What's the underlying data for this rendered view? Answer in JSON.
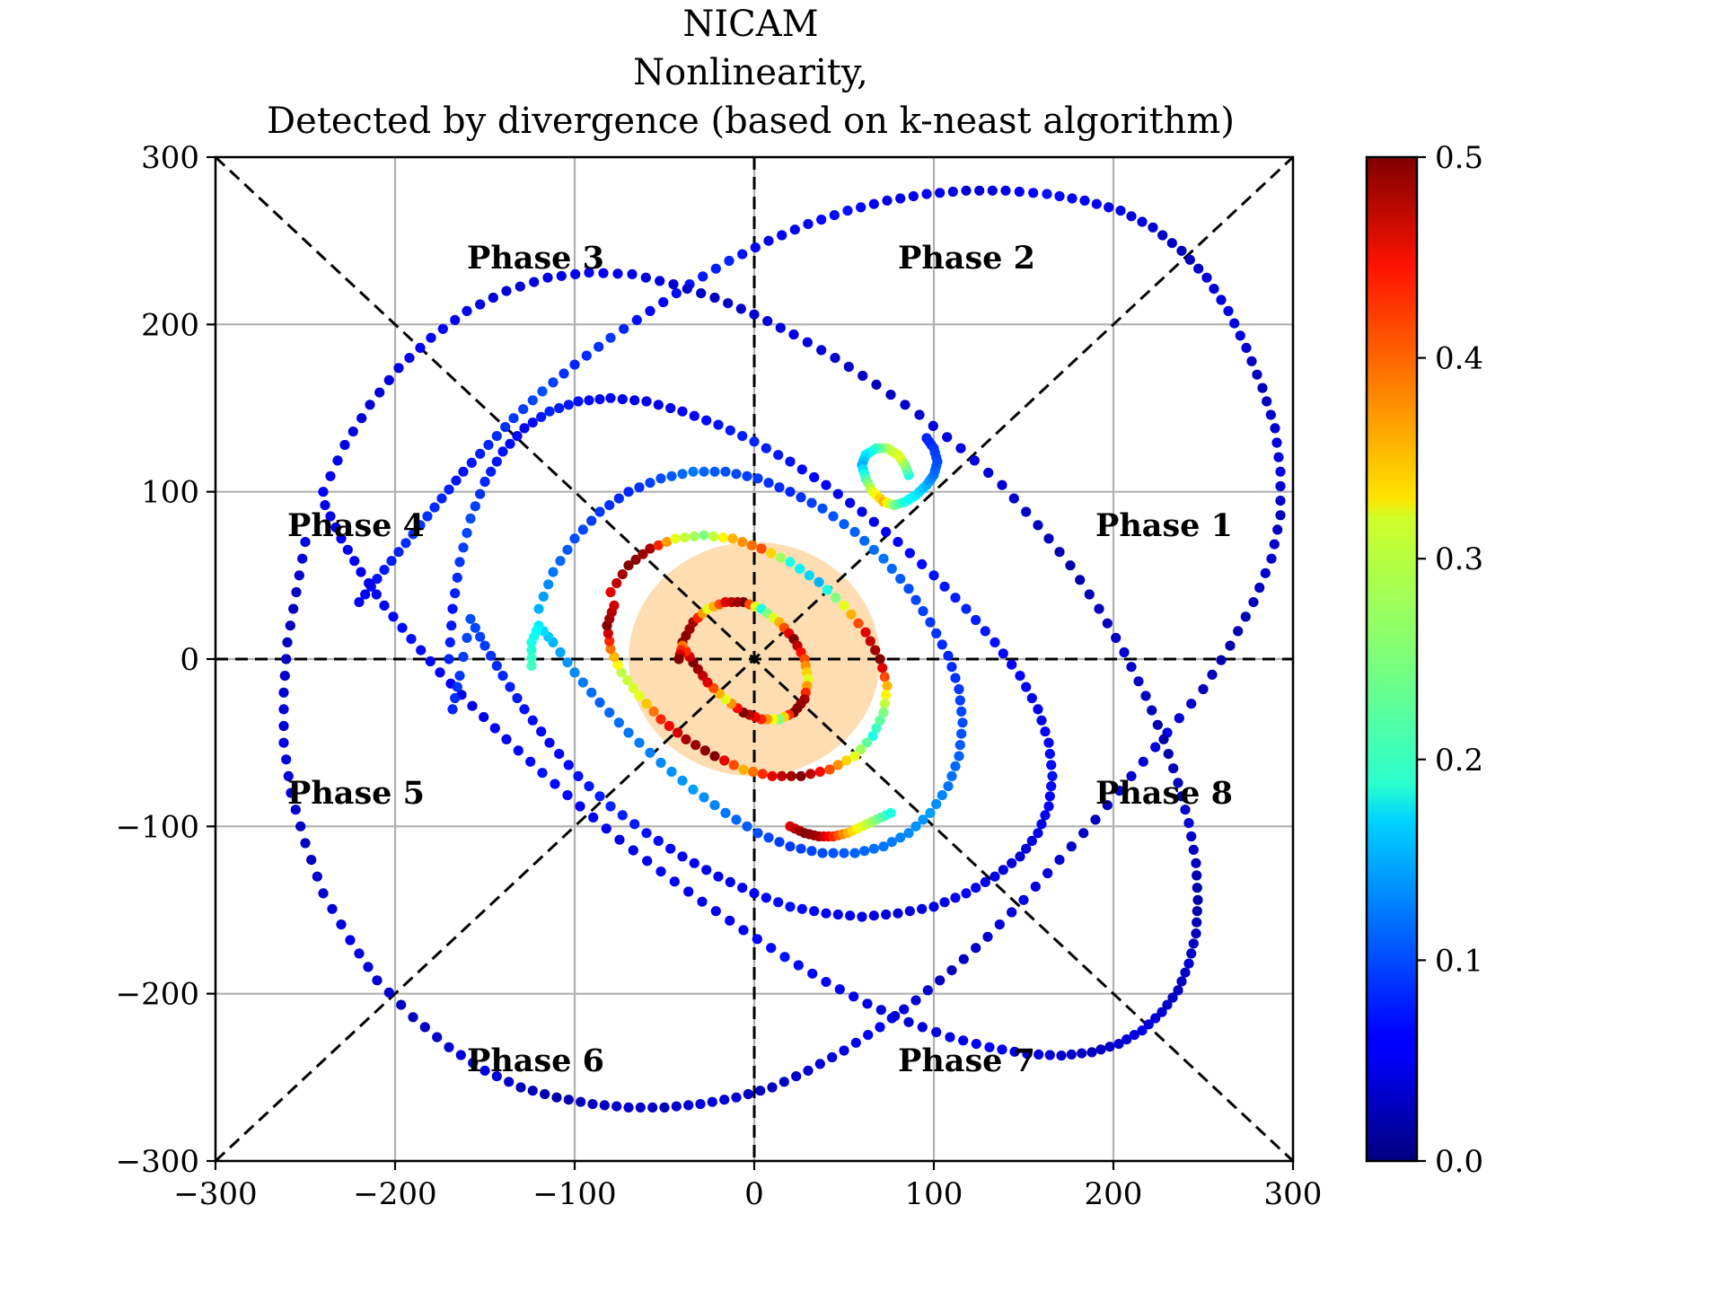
{
  "chart_data": {
    "type": "scatter",
    "title": [
      "NICAM",
      "Nonlinearity,",
      "Detected by divergence (based on k-neast algorithm)"
    ],
    "xlim": [
      -300,
      300
    ],
    "ylim": [
      -300,
      300
    ],
    "x_ticks": [
      -300,
      -200,
      -100,
      0,
      100,
      200,
      300
    ],
    "y_ticks": [
      -300,
      -200,
      -100,
      0,
      100,
      200,
      300
    ],
    "x_tick_labels": [
      "−300",
      "−200",
      "−100",
      "0",
      "100",
      "200",
      "300"
    ],
    "y_tick_labels": [
      "−300",
      "−200",
      "−100",
      "0",
      "100",
      "200",
      "300"
    ],
    "grid": true,
    "reference_lines": [
      "x=0",
      "y=0",
      "y=x",
      "y=-x"
    ],
    "phase_labels": [
      {
        "text": "Phase 1",
        "x": 190,
        "y": 80
      },
      {
        "text": "Phase 2",
        "x": 80,
        "y": 240
      },
      {
        "text": "Phase 3",
        "x": -160,
        "y": 240
      },
      {
        "text": "Phase 4",
        "x": -260,
        "y": 80
      },
      {
        "text": "Phase 5",
        "x": -260,
        "y": -80
      },
      {
        "text": "Phase 6",
        "x": -160,
        "y": -240
      },
      {
        "text": "Phase 7",
        "x": 80,
        "y": -240
      },
      {
        "text": "Phase 8",
        "x": 190,
        "y": -80
      }
    ],
    "shaded_region": {
      "center": [
        0,
        0
      ],
      "rx": 70,
      "ry": 70,
      "color": "#fdd9a8"
    },
    "colorbar": {
      "colormap": "jet",
      "range": [
        0.0,
        0.5
      ],
      "ticks": [
        0.0,
        0.1,
        0.2,
        0.3,
        0.4,
        0.5
      ],
      "tick_labels": [
        "0.0",
        "0.1",
        "0.2",
        "0.3",
        "0.4",
        "0.5"
      ]
    },
    "series": [
      {
        "x": [
          -250,
          -255,
          -260,
          -262,
          -262,
          -258,
          -250,
          -240,
          -225,
          -210,
          -190,
          -170,
          -150,
          -130,
          -110,
          -90,
          -70,
          -50,
          -30,
          -10,
          10,
          30,
          50,
          70,
          90,
          110,
          130,
          150,
          170,
          190,
          210,
          230,
          250,
          265,
          278,
          288,
          293,
          293,
          290,
          283,
          274,
          264,
          252,
          238,
          222,
          204,
          184,
          163,
          140,
          118,
          96,
          74,
          52,
          30,
          8,
          -14,
          -36,
          -58,
          -80,
          -100,
          -118,
          -134,
          -148,
          -162,
          -174,
          -186,
          -198,
          -210,
          -220
        ],
        "y": [
          70,
          40,
          10,
          -20,
          -50,
          -80,
          -110,
          -140,
          -168,
          -192,
          -214,
          -232,
          -246,
          -256,
          -262,
          -266,
          -268,
          -268,
          -266,
          -262,
          -256,
          -246,
          -234,
          -220,
          -204,
          -186,
          -166,
          -144,
          -120,
          -96,
          -70,
          -44,
          -18,
          8,
          34,
          60,
          86,
          112,
          138,
          162,
          186,
          208,
          228,
          244,
          258,
          268,
          274,
          278,
          280,
          280,
          278,
          274,
          268,
          260,
          250,
          238,
          224,
          208,
          192,
          176,
          160,
          144,
          128,
          112,
          96,
          80,
          64,
          48,
          34
        ],
        "c": [
          0.05,
          0.03,
          0.03,
          0.04,
          0.05,
          0.04,
          0.03,
          0.04,
          0.05,
          0.04,
          0.03,
          0.04,
          0.05,
          0.03,
          0.02,
          0.03,
          0.04,
          0.03,
          0.05,
          0.04,
          0.03,
          0.04,
          0.05,
          0.06,
          0.04,
          0.03,
          0.04,
          0.05,
          0.04,
          0.03,
          0.04,
          0.05,
          0.03,
          0.02,
          0.03,
          0.04,
          0.03,
          0.05,
          0.04,
          0.03,
          0.04,
          0.05,
          0.04,
          0.03,
          0.04,
          0.05,
          0.06,
          0.07,
          0.05,
          0.04,
          0.06,
          0.05,
          0.07,
          0.06,
          0.05,
          0.08,
          0.07,
          0.06,
          0.09,
          0.08,
          0.1,
          0.09,
          0.08,
          0.07,
          0.08,
          0.09,
          0.08,
          0.07,
          0.06
        ]
      },
      {
        "x": [
          -240,
          -228,
          -214,
          -198,
          -180,
          -160,
          -138,
          -115,
          -92,
          -68,
          -45,
          -22,
          0,
          22,
          45,
          68,
          92,
          115,
          138,
          158,
          176,
          192,
          206,
          218,
          228,
          236,
          242,
          246,
          247,
          246,
          242,
          236,
          227,
          216,
          203,
          188,
          171,
          152,
          131,
          109,
          86,
          63,
          40,
          17,
          -6,
          -29,
          -52,
          -75,
          -97,
          -118,
          -138,
          -157,
          -175,
          -191,
          -206,
          -219,
          -230,
          -239
        ],
        "y": [
          100,
          128,
          152,
          174,
          192,
          208,
          220,
          228,
          231,
          230,
          224,
          216,
          206,
          194,
          180,
          164,
          146,
          126,
          104,
          80,
          56,
          30,
          4,
          -22,
          -48,
          -74,
          -98,
          -122,
          -144,
          -164,
          -182,
          -198,
          -211,
          -222,
          -230,
          -235,
          -237,
          -236,
          -232,
          -226,
          -217,
          -206,
          -193,
          -178,
          -162,
          -145,
          -127,
          -108,
          -88,
          -68,
          -48,
          -28,
          -8,
          12,
          32,
          52,
          72,
          92
        ],
        "c": [
          0.06,
          0.05,
          0.04,
          0.05,
          0.06,
          0.05,
          0.04,
          0.05,
          0.06,
          0.05,
          0.04,
          0.03,
          0.04,
          0.05,
          0.04,
          0.03,
          0.04,
          0.05,
          0.04,
          0.03,
          0.02,
          0.03,
          0.04,
          0.03,
          0.02,
          0.03,
          0.04,
          0.03,
          0.02,
          0.03,
          0.04,
          0.03,
          0.04,
          0.05,
          0.04,
          0.03,
          0.04,
          0.05,
          0.06,
          0.05,
          0.04,
          0.05,
          0.06,
          0.07,
          0.06,
          0.05,
          0.06,
          0.05,
          0.06,
          0.07,
          0.06,
          0.05,
          0.06,
          0.07,
          0.06,
          0.05,
          0.06,
          0.05
        ]
      },
      {
        "x": [
          -170,
          -168,
          -164,
          -158,
          -150,
          -140,
          -128,
          -114,
          -98,
          -80,
          -60,
          -40,
          -20,
          0,
          20,
          40,
          60,
          80,
          100,
          118,
          134,
          148,
          158,
          164,
          166,
          164,
          158,
          148,
          134,
          118,
          100,
          80,
          60,
          40,
          20,
          0,
          -20,
          -40,
          -60,
          -80,
          -98,
          -114,
          -128,
          -140,
          -150,
          -158,
          -164,
          -168
        ],
        "y": [
          0,
          30,
          58,
          84,
          106,
          124,
          138,
          148,
          154,
          156,
          154,
          148,
          140,
          130,
          118,
          104,
          88,
          70,
          50,
          30,
          10,
          -10,
          -30,
          -50,
          -70,
          -88,
          -104,
          -118,
          -130,
          -140,
          -148,
          -152,
          -154,
          -152,
          -148,
          -140,
          -130,
          -118,
          -104,
          -88,
          -70,
          -50,
          -30,
          -10,
          8,
          24,
          -10,
          -30
        ],
        "c": [
          0.08,
          0.07,
          0.09,
          0.1,
          0.08,
          0.07,
          0.06,
          0.08,
          0.07,
          0.06,
          0.05,
          0.06,
          0.07,
          0.08,
          0.07,
          0.06,
          0.05,
          0.06,
          0.07,
          0.08,
          0.07,
          0.06,
          0.05,
          0.06,
          0.07,
          0.06,
          0.05,
          0.04,
          0.05,
          0.06,
          0.05,
          0.04,
          0.05,
          0.06,
          0.07,
          0.06,
          0.05,
          0.06,
          0.07,
          0.08,
          0.07,
          0.06,
          0.07,
          0.08,
          0.09,
          0.1,
          0.09,
          0.08
        ]
      },
      {
        "x": [
          -120,
          -112,
          -100,
          -86,
          -70,
          -52,
          -34,
          -16,
          2,
          20,
          38,
          56,
          72,
          86,
          98,
          108,
          114,
          116,
          114,
          108,
          98,
          86,
          72,
          56,
          38,
          20,
          2,
          -16,
          -34,
          -52,
          -70,
          -86,
          -100,
          -112,
          -120,
          -124,
          -124
        ],
        "y": [
          30,
          52,
          72,
          88,
          100,
          108,
          112,
          112,
          108,
          100,
          90,
          76,
          60,
          42,
          22,
          2,
          -18,
          -38,
          -58,
          -76,
          -92,
          -104,
          -112,
          -116,
          -116,
          -112,
          -104,
          -92,
          -78,
          -62,
          -44,
          -26,
          -8,
          10,
          20,
          10,
          -4
        ],
        "c": [
          0.15,
          0.12,
          0.1,
          0.09,
          0.08,
          0.1,
          0.12,
          0.1,
          0.09,
          0.08,
          0.1,
          0.11,
          0.12,
          0.1,
          0.09,
          0.08,
          0.09,
          0.1,
          0.11,
          0.12,
          0.14,
          0.13,
          0.12,
          0.11,
          0.1,
          0.09,
          0.1,
          0.12,
          0.14,
          0.13,
          0.12,
          0.11,
          0.13,
          0.15,
          0.18,
          0.2,
          0.22
        ]
      },
      {
        "x": [
          -80,
          -70,
          -58,
          -44,
          -28,
          -12,
          4,
          20,
          36,
          50,
          62,
          70,
          74,
          72,
          66,
          56,
          42,
          26,
          10,
          -6,
          -22,
          -38,
          -52,
          -64,
          -74,
          -80,
          -82,
          -78
        ],
        "y": [
          40,
          56,
          66,
          72,
          74,
          72,
          66,
          58,
          46,
          32,
          16,
          0,
          -16,
          -32,
          -46,
          -58,
          -66,
          -70,
          -70,
          -66,
          -58,
          -48,
          -36,
          -22,
          -8,
          6,
          20,
          32
        ],
        "c": [
          0.45,
          0.5,
          0.48,
          0.3,
          0.25,
          0.35,
          0.4,
          0.2,
          0.15,
          0.3,
          0.45,
          0.5,
          0.35,
          0.25,
          0.2,
          0.3,
          0.4,
          0.5,
          0.45,
          0.35,
          0.5,
          0.48,
          0.42,
          0.3,
          0.28,
          0.38,
          0.5,
          0.46
        ]
      },
      {
        "x": [
          -40,
          -34,
          -26,
          -16,
          -6,
          4,
          14,
          22,
          28,
          30,
          28,
          22,
          14,
          4,
          -6,
          -16,
          -26,
          -34,
          -40,
          -42
        ],
        "y": [
          10,
          22,
          30,
          34,
          34,
          30,
          22,
          12,
          0,
          -12,
          -24,
          -32,
          -36,
          -36,
          -32,
          -24,
          -14,
          -2,
          8,
          0
        ],
        "c": [
          0.5,
          0.48,
          0.3,
          0.45,
          0.5,
          0.2,
          0.35,
          0.5,
          0.4,
          0.3,
          0.48,
          0.5,
          0.25,
          0.42,
          0.5,
          0.3,
          0.45,
          0.5,
          0.38,
          0.5
        ]
      },
      {
        "x": [
          86,
          84,
          80,
          74,
          68,
          62,
          60,
          62,
          66,
          72,
          78,
          84,
          90,
          96,
          100,
          102,
          100,
          96
        ],
        "y": [
          110,
          116,
          122,
          126,
          126,
          122,
          116,
          108,
          100,
          94,
          92,
          94,
          98,
          104,
          110,
          118,
          126,
          132
        ],
        "c": [
          0.2,
          0.25,
          0.3,
          0.28,
          0.22,
          0.18,
          0.15,
          0.22,
          0.3,
          0.35,
          0.25,
          0.2,
          0.18,
          0.15,
          0.12,
          0.1,
          0.09,
          0.08
        ]
      },
      {
        "x": [
          20,
          28,
          36,
          44,
          52,
          60,
          68,
          76
        ],
        "y": [
          -100,
          -104,
          -106,
          -106,
          -104,
          -100,
          -96,
          -92
        ],
        "c": [
          0.45,
          0.5,
          0.48,
          0.42,
          0.35,
          0.3,
          0.25,
          0.2
        ]
      }
    ]
  }
}
